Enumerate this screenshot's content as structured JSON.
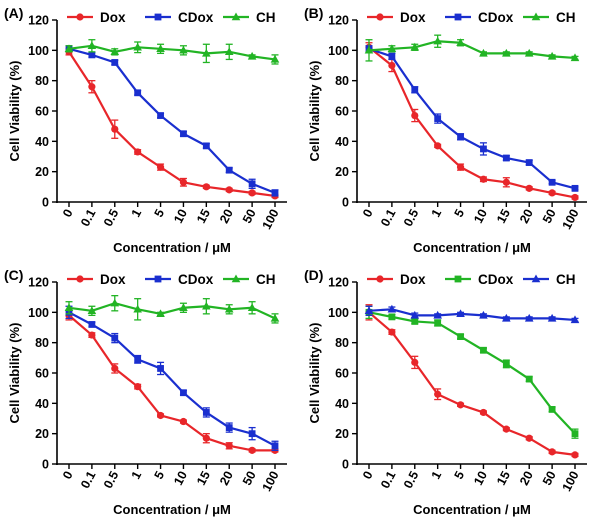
{
  "chart_data": [
    {
      "panel_label": "(A)",
      "type": "line",
      "xlabel": "Concentration / μM",
      "ylabel": "Cell Viability (%)",
      "ylim": [
        0,
        120
      ],
      "yticks": [
        "0",
        "20",
        "40",
        "60",
        "80",
        "100",
        "120"
      ],
      "categories": [
        "0",
        "0.1",
        "0.5",
        "1",
        "5",
        "10",
        "15",
        "20",
        "50",
        "100"
      ],
      "legend_position": "top",
      "series": [
        {
          "name": "Dox",
          "color": "#e8262a",
          "marker": "circle",
          "values": [
            99,
            76,
            48,
            33,
            23,
            13,
            10,
            8,
            6,
            4
          ],
          "errors": [
            2,
            4,
            6,
            1.5,
            2,
            2.5,
            1,
            1,
            1,
            1
          ]
        },
        {
          "name": "CDox",
          "color": "#1a2fcf",
          "marker": "square",
          "values": [
            101,
            97,
            92,
            72,
            57,
            45,
            37,
            21,
            12,
            6
          ],
          "errors": [
            2,
            1.5,
            1.5,
            1.5,
            1.5,
            1.5,
            1.5,
            1.5,
            3,
            2
          ]
        },
        {
          "name": "CH",
          "color": "#22b424",
          "marker": "triangle",
          "values": [
            101,
            103,
            99,
            102,
            101,
            100,
            98,
            99,
            96,
            94
          ],
          "errors": [
            2,
            4,
            2,
            3.5,
            3,
            3,
            6,
            5,
            1,
            3
          ]
        }
      ]
    },
    {
      "panel_label": "(B)",
      "type": "line",
      "xlabel": "Concentration / μM",
      "ylabel": "Cell Viability (%)",
      "ylim": [
        0,
        120
      ],
      "yticks": [
        "0",
        "20",
        "40",
        "60",
        "80",
        "100",
        "120"
      ],
      "categories": [
        "0",
        "0.1",
        "0.5",
        "1",
        "5",
        "10",
        "15",
        "20",
        "50",
        "100"
      ],
      "legend_position": "top",
      "series": [
        {
          "name": "Dox",
          "color": "#e8262a",
          "marker": "circle",
          "values": [
            102,
            90,
            57,
            37,
            23,
            15,
            13,
            9,
            6,
            3
          ],
          "errors": [
            3,
            4,
            4,
            1,
            2,
            1.5,
            3,
            1,
            1,
            1
          ]
        },
        {
          "name": "CDox",
          "color": "#1a2fcf",
          "marker": "square",
          "values": [
            101,
            96,
            74,
            55,
            43,
            35,
            29,
            26,
            13,
            9
          ],
          "errors": [
            2,
            2,
            2,
            3,
            2,
            4,
            1.5,
            1.5,
            1,
            1
          ]
        },
        {
          "name": "CH",
          "color": "#22b424",
          "marker": "triangle",
          "values": [
            100,
            101,
            102,
            106,
            105,
            98,
            98,
            98,
            96,
            95
          ],
          "errors": [
            7,
            2,
            2,
            4,
            2,
            1,
            1,
            1,
            1,
            1
          ]
        }
      ]
    },
    {
      "panel_label": "(C)",
      "type": "line",
      "xlabel": "Concentration / μM",
      "ylabel": "Cell Viability (%)",
      "ylim": [
        0,
        120
      ],
      "yticks": [
        "0",
        "20",
        "40",
        "60",
        "80",
        "100",
        "120"
      ],
      "categories": [
        "0",
        "0.1",
        "0.5",
        "1",
        "5",
        "10",
        "15",
        "20",
        "50",
        "100"
      ],
      "legend_position": "top",
      "series": [
        {
          "name": "Dox",
          "color": "#e8262a",
          "marker": "circle",
          "values": [
            98,
            85,
            63,
            51,
            32,
            28,
            17,
            12,
            9,
            9
          ],
          "errors": [
            3,
            1.5,
            3,
            1.5,
            1,
            1,
            3,
            2,
            1,
            1
          ]
        },
        {
          "name": "CDox",
          "color": "#1a2fcf",
          "marker": "square",
          "values": [
            100,
            92,
            83,
            69,
            63,
            47,
            34,
            24,
            20,
            12
          ],
          "errors": [
            4,
            1.5,
            3,
            2.5,
            4,
            1.5,
            3,
            3,
            4,
            3
          ]
        },
        {
          "name": "CH",
          "color": "#22b424",
          "marker": "triangle",
          "values": [
            103,
            101,
            106,
            102,
            99,
            103,
            104,
            102,
            103,
            96
          ],
          "errors": [
            4,
            3,
            5,
            7,
            1,
            3,
            5,
            3,
            4,
            3
          ]
        }
      ]
    },
    {
      "panel_label": "(D)",
      "type": "line",
      "xlabel": "Concentration / μM",
      "ylabel": "Cell Viability (%)",
      "ylim": [
        0,
        120
      ],
      "yticks": [
        "0",
        "20",
        "40",
        "60",
        "80",
        "100",
        "120"
      ],
      "categories": [
        "0",
        "0.1",
        "0.5",
        "1",
        "5",
        "10",
        "15",
        "20",
        "50",
        "100"
      ],
      "legend_position": "top",
      "series": [
        {
          "name": "Dox",
          "color": "#e8262a",
          "marker": "circle",
          "values": [
            100,
            87,
            67,
            46,
            39,
            34,
            23,
            17,
            8,
            6
          ],
          "errors": [
            5,
            1.5,
            4,
            3.5,
            1,
            1,
            1,
            1,
            1,
            1
          ]
        },
        {
          "name": "CDox",
          "color": "#22b424",
          "marker": "square",
          "values": [
            100,
            97,
            94,
            93,
            84,
            75,
            66,
            56,
            36,
            20
          ],
          "errors": [
            4,
            1.5,
            1.5,
            2,
            1.5,
            1.5,
            2.5,
            1.5,
            1.5,
            3
          ]
        },
        {
          "name": "CH",
          "color": "#1a2fcf",
          "marker": "triangle",
          "values": [
            101,
            102,
            98,
            98,
            99,
            98,
            96,
            96,
            96,
            95
          ],
          "errors": [
            3,
            1.5,
            1.5,
            1,
            1,
            1,
            1,
            1,
            1,
            1
          ]
        }
      ]
    }
  ]
}
